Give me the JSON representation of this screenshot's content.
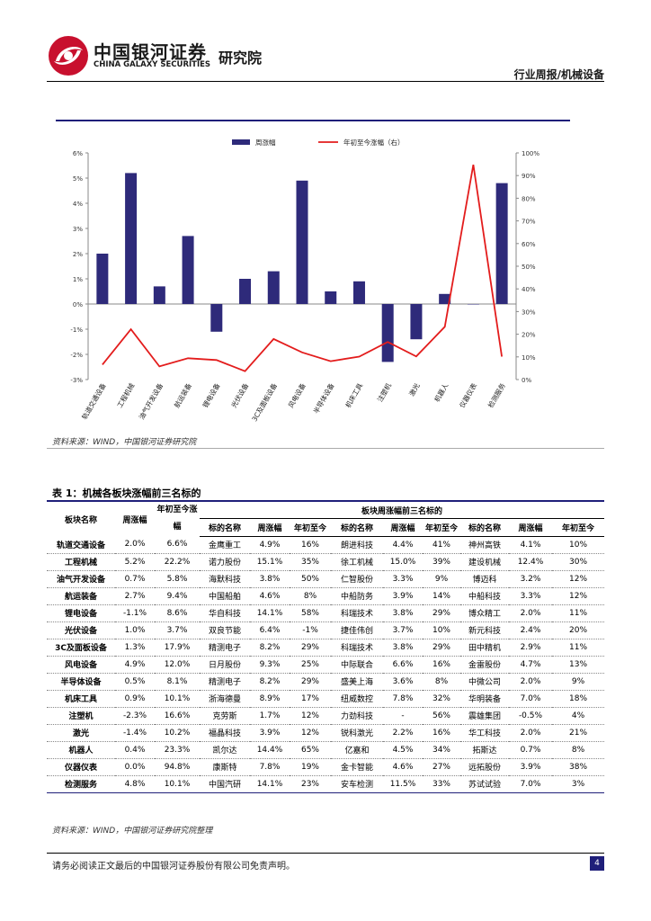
{
  "header": {
    "brand_cn": "中国银河证券",
    "brand_en": "CHINA GALAXY SECURITIES",
    "brand_inst": "研究院",
    "report_type": "行业周报/机械设备",
    "brand_color": "#c8102e"
  },
  "chart_data": {
    "type": "bar",
    "categories": [
      "轨道交通设备",
      "工程机械",
      "油气开发设备",
      "航运装备",
      "锂电设备",
      "光伏设备",
      "3C及面板设备",
      "风电设备",
      "半导体设备",
      "机床工具",
      "注塑机",
      "激光",
      "机器人",
      "仪器仪表",
      "检测服务"
    ],
    "series": [
      {
        "name": "周涨幅",
        "type": "bar",
        "axis": "left",
        "color": "#2e2a7a",
        "values": [
          2.0,
          5.2,
          0.7,
          2.7,
          -1.1,
          1.0,
          1.3,
          4.9,
          0.5,
          0.9,
          -2.3,
          -1.4,
          0.4,
          0.0,
          4.8
        ]
      },
      {
        "name": "年初至今涨幅（右）",
        "type": "line",
        "axis": "right",
        "color": "#e31c1c",
        "values": [
          6.6,
          22.2,
          5.8,
          9.4,
          8.6,
          3.7,
          17.9,
          12.0,
          8.1,
          10.1,
          16.6,
          10.2,
          23.3,
          94.8,
          10.1
        ]
      }
    ],
    "left_axis": {
      "ticks": [
        "6%",
        "5%",
        "4%",
        "3%",
        "2%",
        "1%",
        "0%",
        "-1%",
        "-2%",
        "-3%"
      ],
      "min": -3,
      "max": 6
    },
    "right_axis": {
      "ticks": [
        "100%",
        "90%",
        "80%",
        "70%",
        "60%",
        "50%",
        "40%",
        "30%",
        "20%",
        "10%",
        "0%"
      ],
      "min": 0,
      "max": 100
    },
    "legend_placement": "top",
    "grid": false
  },
  "chart_source": "资料来源：WIND，中国银河证券研究院",
  "table": {
    "title": "表 1：机械各板块涨幅前三名标的",
    "group_header": "板块周涨幅前三名标的",
    "headers": {
      "sector": "板块名称",
      "week": "周涨幅",
      "ytd": "年初至今涨幅",
      "stock": "标的名称",
      "s_week": "周涨幅",
      "s_ytd_a": "年初至今",
      "s_ytd_c": "年初至今"
    },
    "rows": [
      [
        "轨道交通设备",
        "2.0%",
        "6.6%",
        "金鹰重工",
        "4.9%",
        "16%",
        "朗进科技",
        "4.4%",
        "41%",
        "神州高铁",
        "4.1%",
        "10%"
      ],
      [
        "工程机械",
        "5.2%",
        "22.2%",
        "诺力股份",
        "15.1%",
        "35%",
        "徐工机械",
        "15.0%",
        "39%",
        "建设机械",
        "12.4%",
        "30%"
      ],
      [
        "油气开发设备",
        "0.7%",
        "5.8%",
        "海默科技",
        "3.8%",
        "50%",
        "仁智股份",
        "3.3%",
        "9%",
        "博迈科",
        "3.2%",
        "12%"
      ],
      [
        "航运装备",
        "2.7%",
        "9.4%",
        "中国船舶",
        "4.6%",
        "8%",
        "中船防务",
        "3.9%",
        "14%",
        "中船科技",
        "3.3%",
        "12%"
      ],
      [
        "锂电设备",
        "-1.1%",
        "8.6%",
        "华自科技",
        "14.1%",
        "58%",
        "科瑞技术",
        "3.8%",
        "29%",
        "博众精工",
        "2.0%",
        "11%"
      ],
      [
        "光伏设备",
        "1.0%",
        "3.7%",
        "双良节能",
        "6.4%",
        "-1%",
        "捷佳伟创",
        "3.7%",
        "10%",
        "新元科技",
        "2.4%",
        "20%"
      ],
      [
        "3C及面板设备",
        "1.3%",
        "17.9%",
        "精测电子",
        "8.2%",
        "29%",
        "科瑞技术",
        "3.8%",
        "29%",
        "田中精机",
        "2.9%",
        "11%"
      ],
      [
        "风电设备",
        "4.9%",
        "12.0%",
        "日月股份",
        "9.3%",
        "25%",
        "中际联合",
        "6.6%",
        "16%",
        "金雷股份",
        "4.7%",
        "13%"
      ],
      [
        "半导体设备",
        "0.5%",
        "8.1%",
        "精测电子",
        "8.2%",
        "29%",
        "盛美上海",
        "3.6%",
        "8%",
        "中微公司",
        "2.0%",
        "9%"
      ],
      [
        "机床工具",
        "0.9%",
        "10.1%",
        "浙海德曼",
        "8.9%",
        "17%",
        "纽威数控",
        "7.8%",
        "32%",
        "华明装备",
        "7.0%",
        "18%"
      ],
      [
        "注塑机",
        "-2.3%",
        "16.6%",
        "克劳斯",
        "1.7%",
        "12%",
        "力劲科技",
        "-",
        "56%",
        "震雄集团",
        "-0.5%",
        "4%"
      ],
      [
        "激光",
        "-1.4%",
        "10.2%",
        "福晶科技",
        "3.9%",
        "12%",
        "锐科激光",
        "2.2%",
        "16%",
        "华工科技",
        "2.0%",
        "21%"
      ],
      [
        "机器人",
        "0.4%",
        "23.3%",
        "凯尔达",
        "14.4%",
        "65%",
        "亿嘉和",
        "4.5%",
        "34%",
        "拓斯达",
        "0.7%",
        "8%"
      ],
      [
        "仪器仪表",
        "0.0%",
        "94.8%",
        "康斯特",
        "7.8%",
        "19%",
        "金卡智能",
        "4.6%",
        "27%",
        "远拓股份",
        "3.9%",
        "38%"
      ],
      [
        "检测服务",
        "4.8%",
        "10.1%",
        "中国汽研",
        "14.1%",
        "23%",
        "安车检测",
        "11.5%",
        "33%",
        "苏试试验",
        "7.0%",
        "3%"
      ]
    ],
    "source": "资料来源：WIND，中国银河证券研究院整理"
  },
  "footer": {
    "disclaimer": "请务必阅读正文最后的中国银河证券股份有限公司免责声明。",
    "page": "4"
  }
}
